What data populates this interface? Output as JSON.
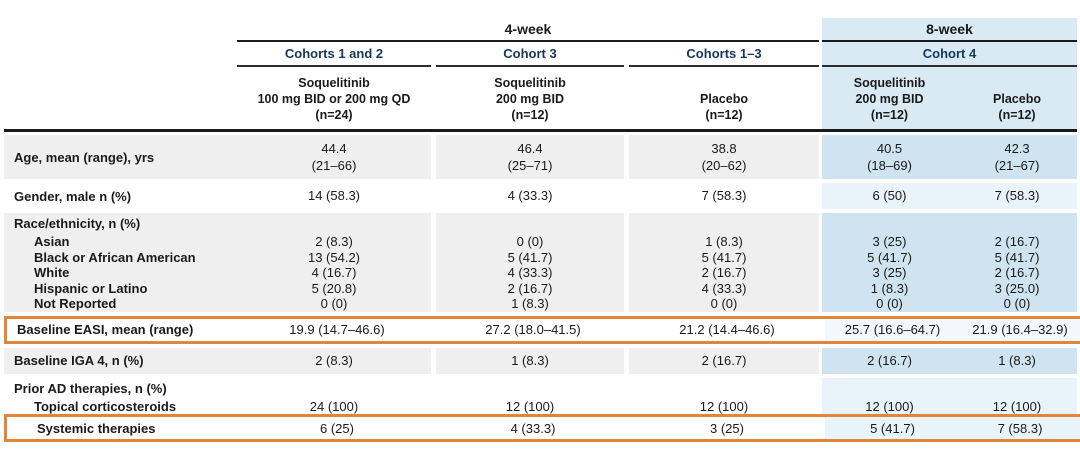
{
  "colors": {
    "accent_orange": "#e0863a",
    "row_gray": "#f0efef",
    "header_blue": "#d9eaf5",
    "blue_shaded": "#cfe4f0",
    "blue_tint": "#e9f3fa",
    "blue_faint": "#f2f8fc",
    "rule_dark": "#1a1a1a",
    "cohort_text_navy": "#17365d"
  },
  "table": {
    "periods": [
      {
        "label": "4-week"
      },
      {
        "label": "8-week"
      }
    ],
    "cohorts": [
      "Cohorts 1 and 2",
      "Cohort 3",
      "Cohorts 1–3",
      "Cohort 4"
    ],
    "columns": [
      {
        "name": "Soquelitinib",
        "dose": "100 mg BID or 200 mg QD",
        "n": "(n=24)"
      },
      {
        "name": "Soquelitinib",
        "dose": "200 mg BID",
        "n": "(n=12)"
      },
      {
        "name": "Placebo",
        "dose": "",
        "n": "(n=12)"
      },
      {
        "name": "Soquelitinib",
        "dose": "200 mg BID",
        "n": "(n=12)"
      },
      {
        "name": "Placebo",
        "dose": "",
        "n": "(n=12)"
      }
    ],
    "sections": [
      {
        "type": "row",
        "bg": "gray",
        "row_class": "r-age",
        "label": "Age, mean (range), yrs",
        "values": [
          [
            "44.4",
            "(21–66)"
          ],
          [
            "46.4",
            "(25–71)"
          ],
          [
            "38.8",
            "(20–62)"
          ],
          [
            "40.5",
            "(18–69)"
          ],
          [
            "42.3",
            "(21–67)"
          ]
        ]
      },
      {
        "type": "row",
        "bg": "white",
        "label": "Gender, male n (%)",
        "values": [
          "14 (58.3)",
          "4 (33.3)",
          "7 (58.3)",
          "6 (50)",
          "7 (58.3)"
        ]
      },
      {
        "type": "group",
        "bg": "gray",
        "label": "Race/ethnicity, n (%)",
        "rows": [
          {
            "label": "Asian",
            "values": [
              "2 (8.3)",
              "0 (0)",
              "1 (8.3)",
              "3 (25)",
              "2 (16.7)"
            ]
          },
          {
            "label": "Black or African American",
            "values": [
              "13 (54.2)",
              "5 (41.7)",
              "5 (41.7)",
              "5 (41.7)",
              "5 (41.7)"
            ]
          },
          {
            "label": "White",
            "values": [
              "4 (16.7)",
              "4 (33.3)",
              "2 (16.7)",
              "3 (25)",
              "2 (16.7)"
            ]
          },
          {
            "label": "Hispanic or Latino",
            "values": [
              "5 (20.8)",
              "2 (16.7)",
              "4 (33.3)",
              "1 (8.3)",
              "3 (25.0)"
            ]
          },
          {
            "label": "Not Reported",
            "values": [
              "0 (0)",
              "1 (8.3)",
              "0 (0)",
              "0 (0)",
              "0 (0)"
            ]
          }
        ]
      },
      {
        "type": "row",
        "bg": "white",
        "right": "faint",
        "highlight": true,
        "label": "Baseline EASI, mean (range)",
        "values": [
          "19.9 (14.7–46.6)",
          "27.2 (18.0–41.5)",
          "21.2 (14.4–46.6)",
          "25.7 (16.6–64.7)",
          "21.9 (16.4–32.9)"
        ]
      },
      {
        "type": "row",
        "bg": "gray",
        "label": "Baseline IGA 4, n (%)",
        "values": [
          "2 (8.3)",
          "1 (8.3)",
          "2 (16.7)",
          "2 (16.7)",
          "1 (8.3)"
        ]
      },
      {
        "type": "group",
        "bg": "white",
        "label": "Prior AD therapies, n (%)",
        "rows": [
          {
            "label": "Topical corticosteroids",
            "values": [
              "24 (100)",
              "12 (100)",
              "12 (100)",
              "12 (100)",
              "12 (100)"
            ]
          },
          {
            "label": "Systemic therapies",
            "highlight": true,
            "values": [
              "6 (25)",
              "4 (33.3)",
              "3 (25)",
              "5 (41.7)",
              "7 (58.3)"
            ]
          }
        ]
      }
    ]
  }
}
